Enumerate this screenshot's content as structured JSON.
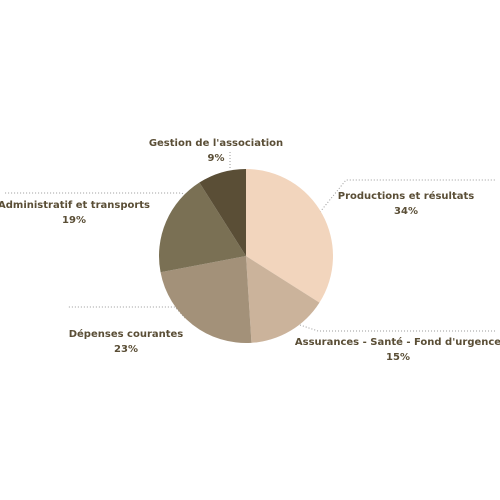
{
  "chart_data": {
    "type": "pie",
    "categories": [
      "Productions et résultats",
      "Assurances - Santé - Fond d'urgence",
      "Dépenses courantes",
      "Administratif et transports",
      "Gestion de l'association"
    ],
    "values": [
      34,
      15,
      23,
      19,
      9
    ],
    "value_labels": [
      "34%",
      "15%",
      "23%",
      "19%",
      "9%"
    ],
    "colors": [
      "#f2d5bd",
      "#cbb39b",
      "#a39179",
      "#7a7054",
      "#5a4e36"
    ]
  }
}
